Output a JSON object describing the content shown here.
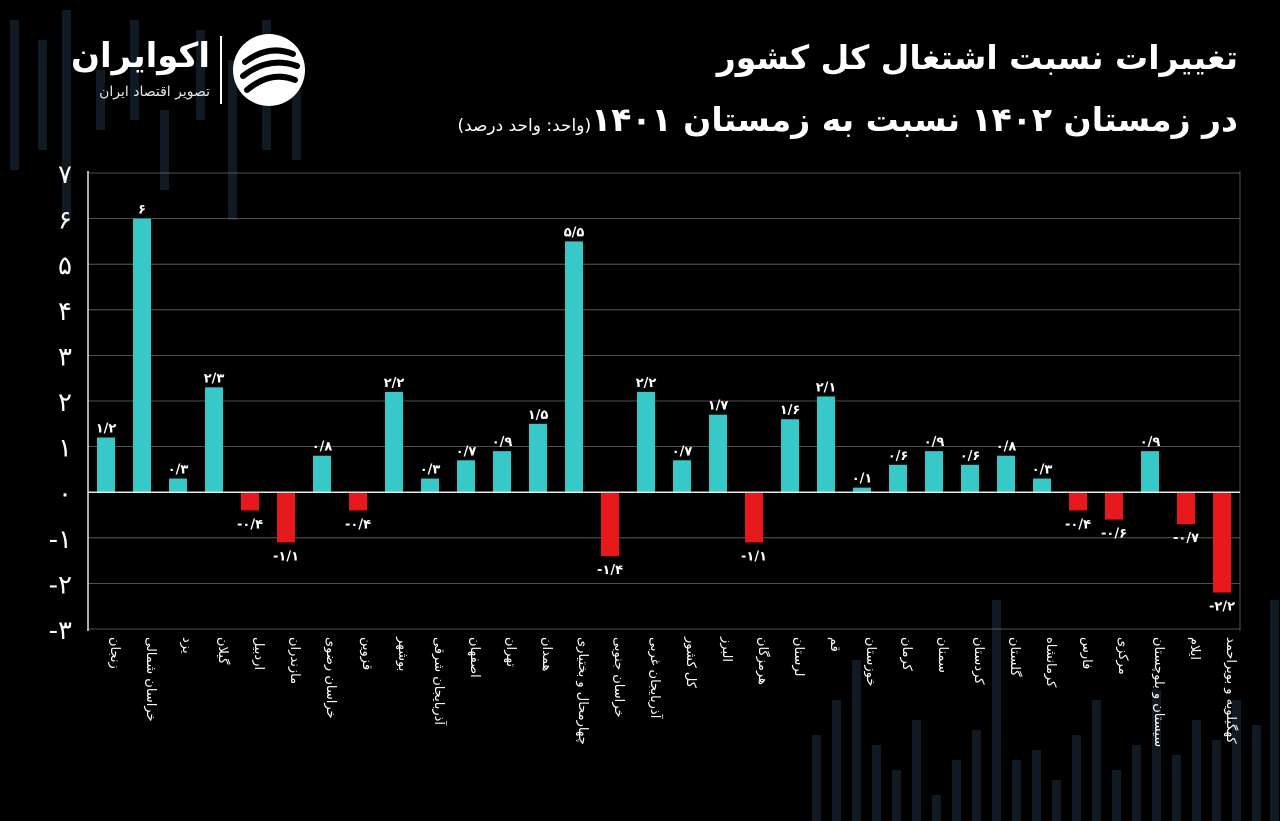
{
  "header": {
    "title_line1": "تغییرات نسبت اشتغال کل کشور",
    "title_line2": "در زمستان ۱۴۰۲ نسبت به زمستان ۱۴۰۱",
    "unit_note": "(واحد: واحد درصد)"
  },
  "brand": {
    "name": "اکوایران",
    "tagline": "تصویر اقتصاد ایران",
    "icon": "ecoiran-logo-icon"
  },
  "colors": {
    "background": "#000000",
    "positive": "#37C8C8",
    "negative": "#E8191C",
    "text": "#FFFFFF",
    "grid": "#6b6b6b",
    "axis": "#e6e6e6"
  },
  "chart_data": {
    "type": "bar",
    "ylim": [
      -3,
      7
    ],
    "yticks": [
      -3,
      -2,
      -1,
      0,
      1,
      2,
      3,
      4,
      5,
      6,
      7
    ],
    "ytick_labels": [
      "-۳",
      "-۲",
      "-۱",
      "۰",
      "۱",
      "۲",
      "۳",
      "۴",
      "۵",
      "۶",
      "۷"
    ],
    "grid": true,
    "categories": [
      "زنجان",
      "خراسان شمالی",
      "یزد",
      "گیلان",
      "اردبیل",
      "مازندران",
      "خراسان رضوی",
      "قزوین",
      "بوشهر",
      "آذربایجان شرقی",
      "اصفهان",
      "تهران",
      "همدان",
      "چهارمحال و بختیاری",
      "خراسان جنوبی",
      "آذربایجان غربی",
      "کل کشور",
      "البرز",
      "هرمزگان",
      "لرستان",
      "قم",
      "خوزستان",
      "کرمان",
      "سمنان",
      "کردستان",
      "گلستان",
      "کرمانشاه",
      "فارس",
      "مرکزی",
      "سیستان و بلوچستان",
      "ایلام",
      "کهگیلویه و بویراحمد"
    ],
    "values": [
      1.2,
      6,
      0.3,
      2.3,
      -0.4,
      -1.1,
      0.8,
      -0.4,
      2.2,
      0.3,
      0.7,
      0.9,
      1.5,
      5.5,
      -1.4,
      2.2,
      0.7,
      1.7,
      -1.1,
      1.6,
      2.1,
      0.1,
      0.6,
      0.9,
      0.6,
      0.8,
      0.3,
      -0.4,
      -0.6,
      0.9,
      -0.7,
      -2.2
    ],
    "value_labels": [
      "۱/۲",
      "۶",
      "۰/۳",
      "۲/۳",
      "-۰/۴",
      "-۱/۱",
      "۰/۸",
      "-۰/۴",
      "۲/۲",
      "۰/۳",
      "۰/۷",
      "۰/۹",
      "۱/۵",
      "۵/۵",
      "-۱/۴",
      "۲/۲",
      "۰/۷",
      "۱/۷",
      "-۱/۱",
      "۱/۶",
      "۲/۱",
      "۰/۱",
      "۰/۶",
      "۰/۹",
      "۰/۶",
      "۰/۸",
      "۰/۳",
      "-۰/۴",
      "-۰/۶",
      "۰/۹",
      "-۰/۷",
      "-۲/۲"
    ],
    "title": "",
    "xlabel": "",
    "ylabel": ""
  }
}
